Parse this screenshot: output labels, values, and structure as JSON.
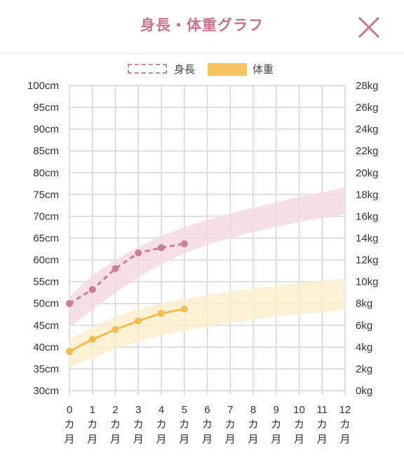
{
  "header": {
    "title": "身長・体重グラフ",
    "close_icon": "close-icon"
  },
  "legend": {
    "height_label": "身長",
    "weight_label": "体重"
  },
  "colors": {
    "accent": "#c8728f",
    "height_line": "#c97d98",
    "height_band": "#f3dbe4",
    "weight_line": "#f2bd4f",
    "weight_band": "#fcefcf",
    "grid": "#d6d6d6"
  },
  "chart_data": {
    "type": "line",
    "x": [
      0,
      1,
      2,
      3,
      4,
      5
    ],
    "x_ticks": [
      "0\nカ\n月",
      "1\nカ\n月",
      "2\nカ\n月",
      "3\nカ\n月",
      "4\nカ\n月",
      "5\nカ\n月",
      "6\nカ\n月",
      "7\nカ\n月",
      "8\nカ\n月",
      "9\nカ\n月",
      "10\nカ\n月",
      "11\nカ\n月",
      "12\nカ\n月"
    ],
    "xlim": [
      0,
      12
    ],
    "y_left_ticks": [
      "30cm",
      "35cm",
      "40cm",
      "45cm",
      "50cm",
      "55cm",
      "60cm",
      "65cm",
      "70cm",
      "75cm",
      "80cm",
      "85cm",
      "90cm",
      "95cm",
      "100cm"
    ],
    "y_right_ticks": [
      "0kg",
      "2kg",
      "4kg",
      "6kg",
      "8kg",
      "10kg",
      "12kg",
      "14kg",
      "16kg",
      "18kg",
      "20kg",
      "22kg",
      "24kg",
      "26kg",
      "28kg"
    ],
    "ylim_left": [
      30,
      100
    ],
    "ylim_right": [
      0,
      28
    ],
    "series": [
      {
        "name": "身長",
        "axis": "left",
        "style": "dashed",
        "x": [
          0,
          1,
          2,
          3,
          4,
          5
        ],
        "values": [
          50,
          53.2,
          58,
          61.6,
          62.8,
          63.7
        ]
      },
      {
        "name": "体重",
        "axis": "right",
        "style": "solid",
        "x": [
          0,
          1,
          2,
          3,
          4,
          5
        ],
        "values": [
          3.6,
          4.7,
          5.6,
          6.4,
          7.1,
          7.5
        ]
      }
    ],
    "bands": [
      {
        "series": "身長",
        "axis": "left",
        "x": [
          0,
          1,
          2,
          3,
          4,
          5,
          6,
          7,
          8,
          9,
          10,
          11,
          12
        ],
        "upper": [
          51.5,
          56.5,
          60,
          63,
          65.5,
          67.5,
          69.2,
          70.7,
          72,
          73.2,
          74.5,
          75.5,
          76.7
        ],
        "lower": [
          44.5,
          48.5,
          52.5,
          56,
          59,
          61.5,
          63.5,
          65,
          66.4,
          67.5,
          68.7,
          69.6,
          70.5
        ]
      },
      {
        "series": "体重",
        "axis": "right",
        "x": [
          0,
          1,
          2,
          3,
          4,
          5,
          6,
          7,
          8,
          9,
          10,
          11,
          12
        ],
        "upper": [
          4.7,
          5.8,
          6.8,
          7.5,
          8,
          8.4,
          8.8,
          9.1,
          9.4,
          9.6,
          9.9,
          10.1,
          10.3
        ],
        "lower": [
          2.2,
          3,
          3.8,
          4.5,
          5.1,
          5.5,
          5.9,
          6.2,
          6.5,
          6.8,
          7,
          7.2,
          7.4
        ]
      }
    ],
    "grid": true,
    "legend_position": "top-center"
  }
}
